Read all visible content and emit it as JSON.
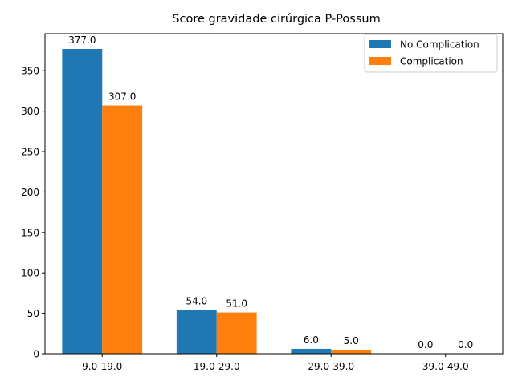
{
  "chart_data": {
    "type": "bar",
    "title": "Score gravidade cirúrgica P-Possum",
    "xlabel": "",
    "ylabel": "",
    "categories": [
      "9.0-19.0",
      "19.0-29.0",
      "29.0-39.0",
      "39.0-49.0"
    ],
    "series": [
      {
        "name": "No Complication",
        "values": [
          377.0,
          54.0,
          6.0,
          0.0
        ],
        "color": "#1f77b4"
      },
      {
        "name": "Complication",
        "values": [
          307.0,
          51.0,
          5.0,
          0.0
        ],
        "color": "#ff7f0e"
      }
    ],
    "value_labels": [
      [
        "377.0",
        "54.0",
        "6.0",
        "0.0"
      ],
      [
        "307.0",
        "51.0",
        "5.0",
        "0.0"
      ]
    ],
    "ylim": [
      0,
      395.85
    ],
    "yticks": [
      0,
      50,
      100,
      150,
      200,
      250,
      300,
      350
    ],
    "grid": false,
    "legend_position": "top-right"
  }
}
